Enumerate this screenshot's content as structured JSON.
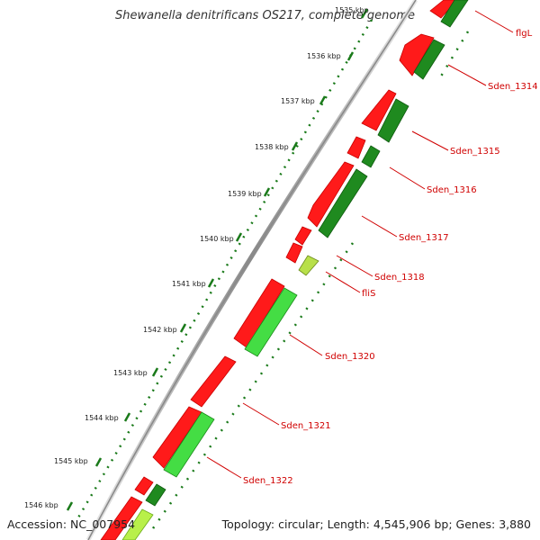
{
  "title": "Shewanella denitrificans OS217, complete genome",
  "accession": "Accession: NC_007954",
  "topology": "Topology: circular; Length: 4,545,906 bp; Genes: 3,880",
  "ruler": [
    {
      "label": "1535 kbp"
    },
    {
      "label": "1536 kbp"
    },
    {
      "label": "1537 kbp"
    },
    {
      "label": "1538 kbp"
    },
    {
      "label": "1539 kbp"
    },
    {
      "label": "1540 kbp"
    },
    {
      "label": "1541 kbp"
    },
    {
      "label": "1542 kbp"
    },
    {
      "label": "1543 kbp"
    },
    {
      "label": "1544 kbp"
    },
    {
      "label": "1545 kbp"
    },
    {
      "label": "1546 kbp"
    }
  ],
  "genes": [
    {
      "name": "flgL"
    },
    {
      "name": "Sden_1314"
    },
    {
      "name": "Sden_1315"
    },
    {
      "name": "Sden_1316"
    },
    {
      "name": "Sden_1317"
    },
    {
      "name": "Sden_1318"
    },
    {
      "name": "fliS"
    },
    {
      "name": "Sden_1320"
    },
    {
      "name": "Sden_1321"
    },
    {
      "name": "Sden_1322"
    }
  ],
  "colors": {
    "cds": "#ff1a1a",
    "cds_dark": "#c80000",
    "gene_dark_green": "#1f8a1f",
    "gene_light_green": "#44dd44",
    "gene_yellow_green": "#b8e04a",
    "tick_green": "#1a7a1a",
    "label_red": "#d00000",
    "backbone": "#9a9a9a"
  }
}
